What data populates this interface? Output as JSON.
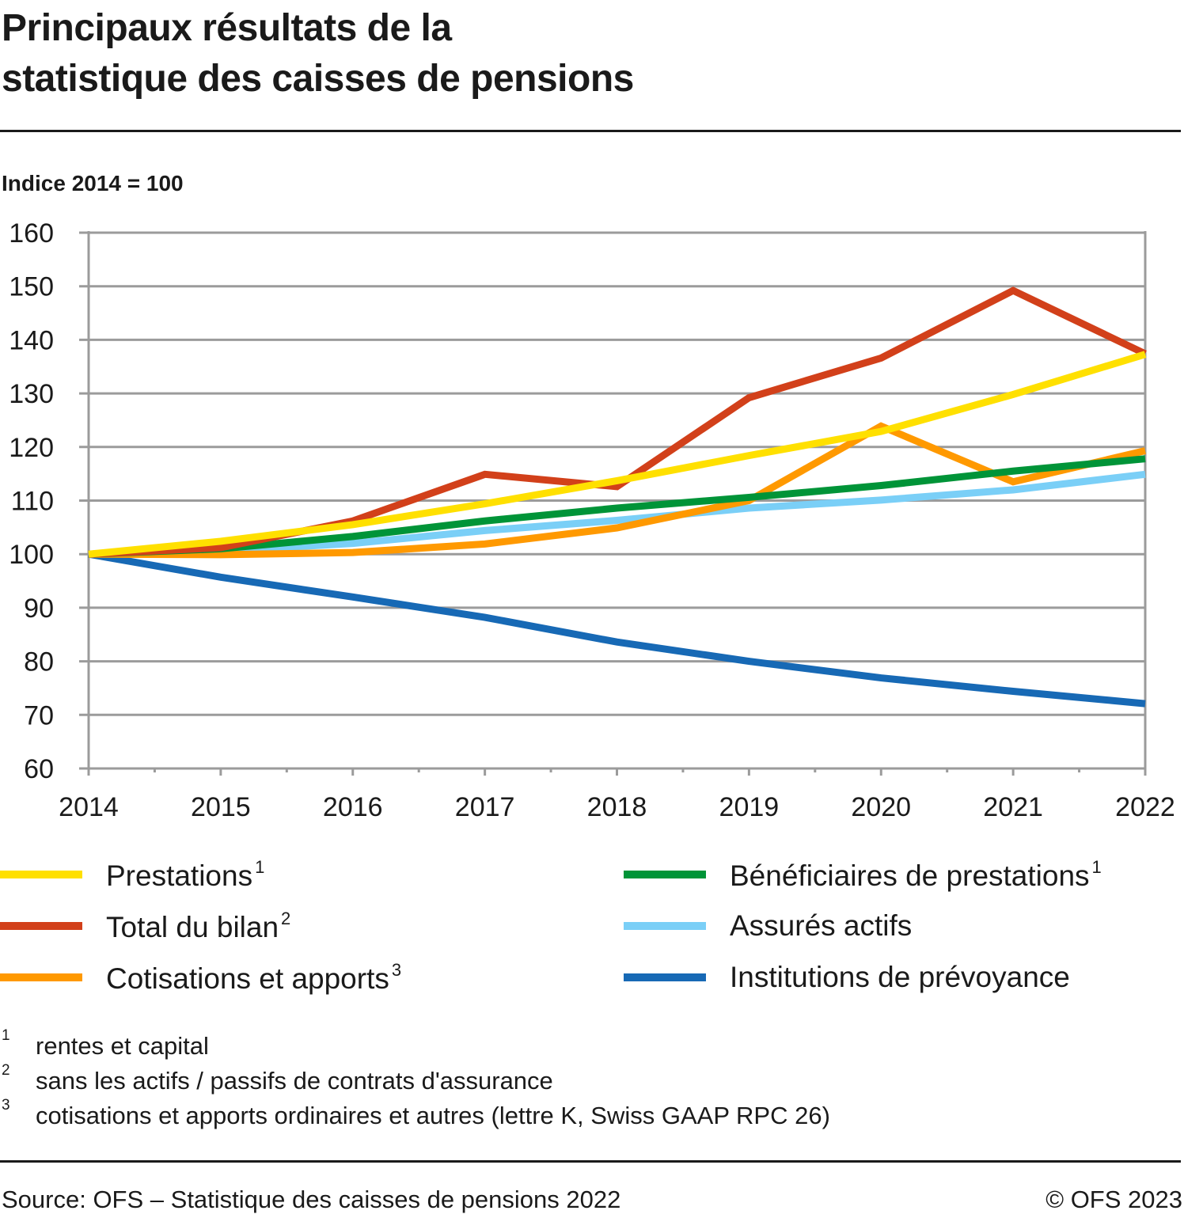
{
  "title_line1": "Principaux résultats de la",
  "title_line2": "statistique des caisses de pensions",
  "footnotes": [
    {
      "num": "1",
      "text": "rentes et capital"
    },
    {
      "num": "2",
      "text": "sans les actifs / passifs de contrats d'assurance"
    },
    {
      "num": "3",
      "text": "cotisations et apports ordinaires et autres (lettre K, Swiss GAAP RPC 26)"
    }
  ],
  "source": "Source: OFS – Statistique des caisses de pensions 2022",
  "copyright": "© OFS 2023",
  "chart_data": {
    "type": "line",
    "title": "Principaux résultats de la statistique des caisses de pensions",
    "ylabel": "Indice 2014 = 100",
    "xlabel": "",
    "x": [
      "2014",
      "2015",
      "2016",
      "2017",
      "2018",
      "2019",
      "2020",
      "2021",
      "2022"
    ],
    "ylim": [
      60,
      160
    ],
    "yticks": [
      60,
      70,
      80,
      90,
      100,
      110,
      120,
      130,
      140,
      150,
      160
    ],
    "grid": true,
    "legend_position": "bottom",
    "series": [
      {
        "name": "Prestations",
        "sup": "1",
        "color": "#FFE000",
        "values": [
          100,
          102.4,
          105.5,
          109.4,
          113.7,
          118.4,
          122.9,
          129.8,
          137.3
        ]
      },
      {
        "name": "Total du bilan",
        "sup": "2",
        "color": "#D2401A",
        "values": [
          100,
          101.2,
          106.2,
          114.9,
          112.6,
          129.2,
          136.6,
          149.2,
          137.4
        ]
      },
      {
        "name": "Cotisations et apports",
        "sup": "3",
        "color": "#FF9900",
        "values": [
          100,
          99.9,
          100.3,
          101.9,
          104.9,
          110.0,
          123.9,
          113.5,
          119.3
        ]
      },
      {
        "name": "Bénéficiaires de prestations",
        "sup": "1",
        "color": "#009438",
        "values": [
          100,
          101.0,
          103.3,
          106.2,
          108.6,
          110.6,
          112.8,
          115.5,
          117.8
        ]
      },
      {
        "name": "Assurés actifs",
        "sup": "",
        "color": "#7ACFF7",
        "values": [
          100,
          100.6,
          102.0,
          104.4,
          106.3,
          108.6,
          110.1,
          112.0,
          114.9
        ]
      },
      {
        "name": "Institutions de prévoyance",
        "sup": "",
        "color": "#1769B5",
        "values": [
          100,
          95.7,
          92.0,
          88.2,
          83.6,
          80.0,
          76.9,
          74.4,
          72.1
        ]
      }
    ]
  }
}
